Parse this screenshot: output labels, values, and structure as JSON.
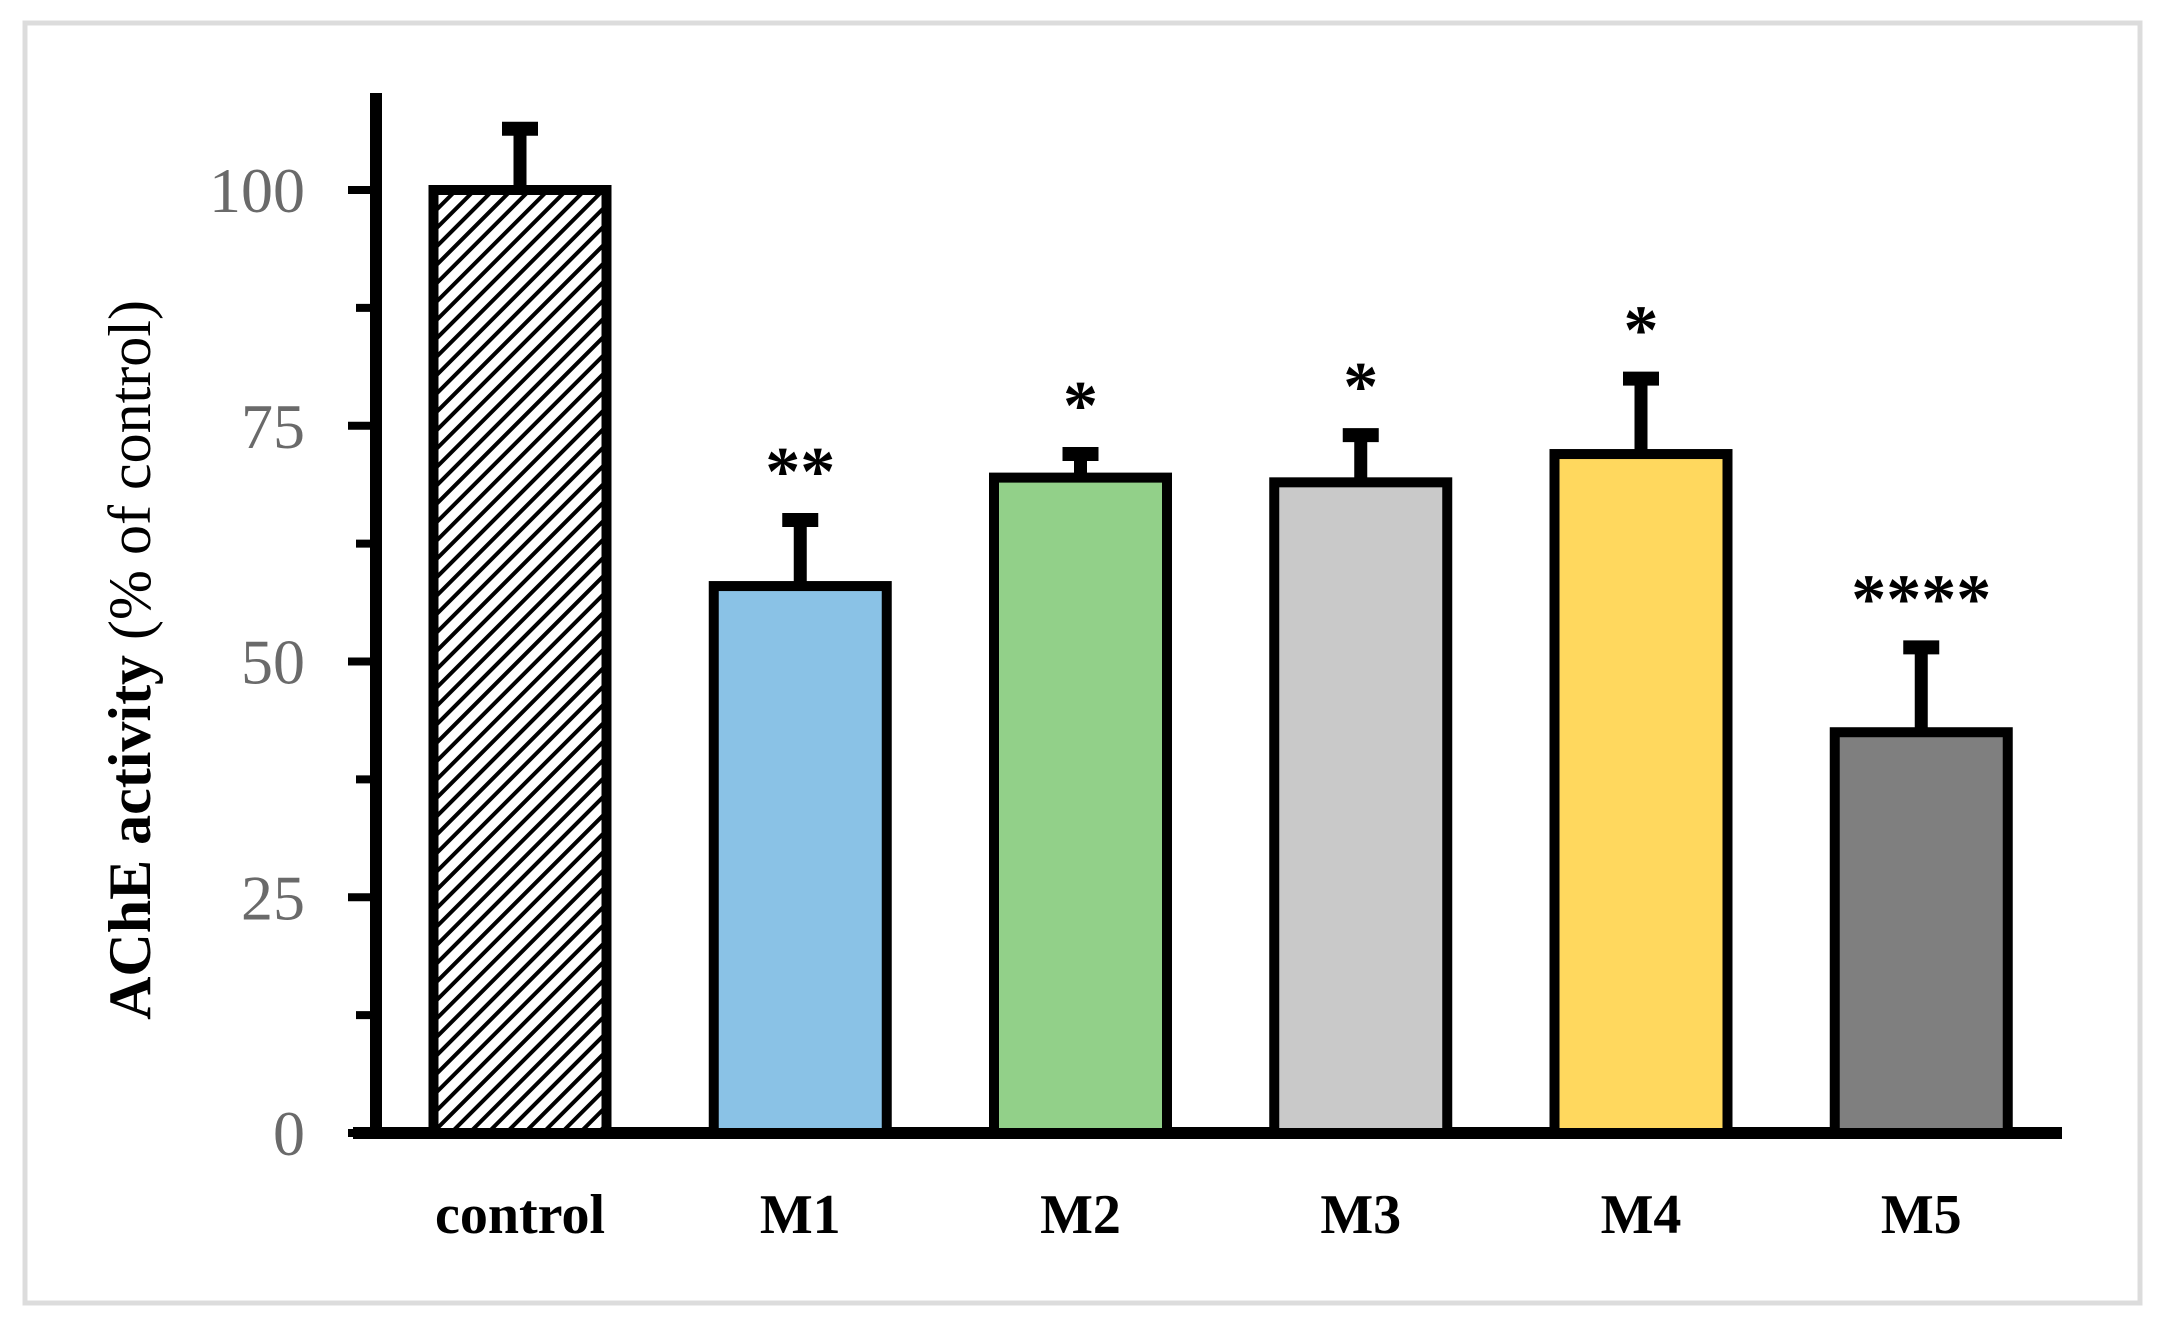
{
  "figure": {
    "background_color": "#ffffff",
    "frame_color": "#dcdcdc",
    "axis_color": "#000000",
    "tick_label_color": "#6a6a6a",
    "x_label_color": "#000000",
    "significance_color": "#000000"
  },
  "chart_data": {
    "type": "bar",
    "title": "",
    "ylabel": "AChE activity (% of control)",
    "ylabel_bold_part": "AChE activity ",
    "ylabel_regular_part": "(% of control)",
    "xlabel": "",
    "categories": [
      "control",
      "M1",
      "M2",
      "M3",
      "M4",
      "M5"
    ],
    "values": [
      100,
      58,
      69.5,
      69,
      72,
      42.5
    ],
    "errors": [
      6.5,
      7,
      2.5,
      5,
      8,
      9
    ],
    "significance": [
      "",
      "**",
      "*",
      "*",
      "*",
      "****"
    ],
    "bar_fills": [
      "hatch",
      "#8AC2E6",
      "#92D089",
      "#C9C9C9",
      "#FFD85E",
      "#7F7F7F"
    ],
    "bar_border_color": "#000000",
    "yticks": [
      0,
      25,
      50,
      75,
      100
    ],
    "minor_yticks": [
      12.5,
      37.5,
      62.5,
      87.5
    ],
    "ylim": [
      0,
      113
    ],
    "grid": false,
    "legend": "none",
    "error_bar_style": "cap-top-only"
  }
}
